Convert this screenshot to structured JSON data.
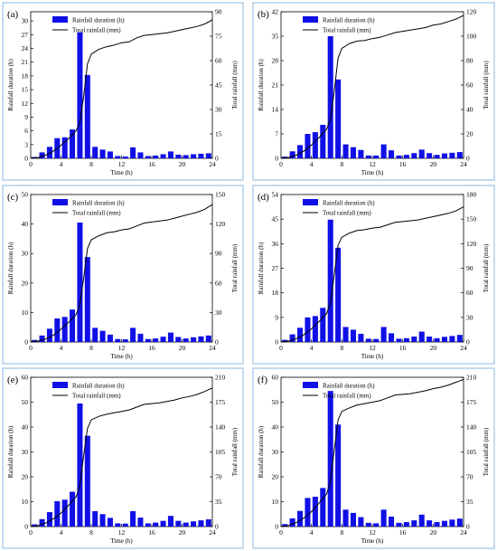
{
  "chart_data": [
    {
      "panel": "(a)",
      "type": "bar+line",
      "legend": [
        "Rainfall duration   (h)",
        "Total rainfall   (mm)"
      ],
      "xlabel": "Time   (h)",
      "ylabel_left": "Rainfall duration   (h)",
      "ylabel_right": "Total rainfall   (mm)",
      "x_ticks": [
        0,
        4,
        8,
        12,
        16,
        20,
        24
      ],
      "left_ticks": [
        0,
        3,
        6,
        9,
        12,
        15,
        18,
        21,
        24,
        27,
        30
      ],
      "right_ticks": [
        0,
        15,
        30,
        45,
        60,
        75,
        90
      ],
      "left_ylim": [
        0,
        32
      ],
      "right_ylim": [
        0,
        90
      ],
      "hours": [
        1,
        2,
        3,
        4,
        5,
        6,
        7,
        8,
        9,
        10,
        11,
        12,
        13,
        14,
        15,
        16,
        17,
        18,
        19,
        20,
        21,
        22,
        23,
        24
      ],
      "rainfall_duration": [
        0.3,
        1.3,
        2.5,
        4.4,
        4.6,
        6.3,
        27.5,
        18.2,
        2.5,
        1.9,
        1.5,
        0.5,
        0.4,
        2.4,
        1.3,
        0.5,
        0.6,
        0.9,
        1.5,
        0.8,
        0.7,
        0.9,
        1.0,
        1.1
      ],
      "total_rainfall": [
        [
          0,
          0
        ],
        [
          1,
          0.5
        ],
        [
          2,
          2
        ],
        [
          3,
          4.5
        ],
        [
          4,
          8
        ],
        [
          5,
          12
        ],
        [
          6,
          17
        ],
        [
          6.5,
          22
        ],
        [
          7,
          38
        ],
        [
          7.5,
          58
        ],
        [
          8,
          64
        ],
        [
          9,
          67
        ],
        [
          10,
          68.5
        ],
        [
          11,
          69.5
        ],
        [
          12,
          71
        ],
        [
          13,
          71.5
        ],
        [
          14,
          74
        ],
        [
          15,
          75.5
        ],
        [
          16,
          76
        ],
        [
          17,
          76.5
        ],
        [
          18,
          77
        ],
        [
          19,
          78
        ],
        [
          20,
          79
        ],
        [
          21,
          80
        ],
        [
          22,
          81
        ],
        [
          23,
          82.5
        ],
        [
          24,
          85
        ]
      ]
    },
    {
      "panel": "(b)",
      "type": "bar+line",
      "legend": [
        "Rainfall duration   (h)",
        "Total rainfall   (mm)"
      ],
      "xlabel": "Time   (h)",
      "ylabel_left": "Rainfall duration   (h)",
      "ylabel_right": "Total rainfall   (mm)",
      "x_ticks": [
        0,
        4,
        8,
        12,
        16,
        20,
        24
      ],
      "left_ticks": [
        0,
        7,
        14,
        21,
        28,
        35,
        42
      ],
      "right_ticks": [
        0,
        20,
        40,
        60,
        80,
        100,
        120
      ],
      "left_ylim": [
        0,
        42
      ],
      "right_ylim": [
        0,
        120
      ],
      "hours": [
        1,
        2,
        3,
        4,
        5,
        6,
        7,
        8,
        9,
        10,
        11,
        12,
        13,
        14,
        15,
        16,
        17,
        18,
        19,
        20,
        21,
        22,
        23,
        24
      ],
      "rainfall_duration": [
        0.5,
        2.0,
        3.8,
        7.0,
        7.5,
        9.6,
        35.0,
        22.6,
        4.0,
        3.2,
        2.4,
        0.8,
        0.8,
        4.0,
        2.3,
        0.8,
        1.0,
        1.5,
        2.5,
        1.5,
        1.0,
        1.4,
        1.6,
        1.8
      ],
      "total_rainfall": [
        [
          0,
          0
        ],
        [
          1,
          0.7
        ],
        [
          2,
          2.5
        ],
        [
          3,
          6
        ],
        [
          4,
          11
        ],
        [
          5,
          17
        ],
        [
          6,
          24
        ],
        [
          6.5,
          32
        ],
        [
          7,
          55
        ],
        [
          7.5,
          82
        ],
        [
          8,
          90
        ],
        [
          9,
          94
        ],
        [
          10,
          96
        ],
        [
          11,
          96.5
        ],
        [
          12,
          98
        ],
        [
          13,
          99
        ],
        [
          14,
          101
        ],
        [
          15,
          103
        ],
        [
          16,
          104
        ],
        [
          17,
          105
        ],
        [
          18,
          106
        ],
        [
          19,
          107
        ],
        [
          20,
          109
        ],
        [
          21,
          110
        ],
        [
          22,
          112
        ],
        [
          23,
          114
        ],
        [
          24,
          117
        ]
      ]
    },
    {
      "panel": "(c)",
      "type": "bar+line",
      "legend": [
        "Rainfall duration   (h)",
        "Total rainfall   (mm)"
      ],
      "xlabel": "Time   (h)",
      "ylabel_left": "Rainfall duration   (h)",
      "ylabel_right": "Total rainfall   (mm)",
      "x_ticks": [
        0,
        4,
        8,
        12,
        16,
        20,
        24
      ],
      "left_ticks": [
        0,
        10,
        20,
        30,
        40,
        50
      ],
      "right_ticks": [
        0,
        30,
        60,
        90,
        120,
        150
      ],
      "left_ylim": [
        0,
        50
      ],
      "right_ylim": [
        0,
        150
      ],
      "hours": [
        1,
        2,
        3,
        4,
        5,
        6,
        7,
        8,
        9,
        10,
        11,
        12,
        13,
        14,
        15,
        16,
        17,
        18,
        19,
        20,
        21,
        22,
        23,
        24
      ],
      "rainfall_duration": [
        0.7,
        2.2,
        4.5,
        8.0,
        8.5,
        11.0,
        40.5,
        28.8,
        4.8,
        3.8,
        2.5,
        1.0,
        0.9,
        4.8,
        2.8,
        1.0,
        1.2,
        1.8,
        3.2,
        1.7,
        1.2,
        1.6,
        1.9,
        2.2
      ],
      "total_rainfall": [
        [
          0,
          0
        ],
        [
          1,
          1
        ],
        [
          2,
          3
        ],
        [
          3,
          7
        ],
        [
          4,
          13
        ],
        [
          5,
          20
        ],
        [
          6,
          28
        ],
        [
          6.5,
          38
        ],
        [
          7,
          65
        ],
        [
          7.5,
          95
        ],
        [
          8,
          104
        ],
        [
          9,
          108
        ],
        [
          10,
          111
        ],
        [
          11,
          112
        ],
        [
          12,
          114
        ],
        [
          13,
          115
        ],
        [
          14,
          118
        ],
        [
          15,
          121
        ],
        [
          16,
          122
        ],
        [
          17,
          123
        ],
        [
          18,
          124
        ],
        [
          19,
          126
        ],
        [
          20,
          128
        ],
        [
          21,
          130
        ],
        [
          22,
          132
        ],
        [
          23,
          135
        ],
        [
          24,
          140
        ]
      ]
    },
    {
      "panel": "(d)",
      "type": "bar+line",
      "legend": [
        "Rainfall duration   (h)",
        "Total rainfall   (mm)"
      ],
      "xlabel": "Time   (h)",
      "ylabel_left": "Rainfall duration   (h)",
      "ylabel_right": "Total rainfall   (mm)",
      "x_ticks": [
        0,
        4,
        8,
        12,
        16,
        20,
        24
      ],
      "left_ticks": [
        0,
        9,
        18,
        27,
        36,
        45,
        54
      ],
      "right_ticks": [
        0,
        30,
        60,
        90,
        120,
        150,
        180
      ],
      "left_ylim": [
        0,
        54
      ],
      "right_ylim": [
        0,
        180
      ],
      "hours": [
        1,
        2,
        3,
        4,
        5,
        6,
        7,
        8,
        9,
        10,
        11,
        12,
        13,
        14,
        15,
        16,
        17,
        18,
        19,
        20,
        21,
        22,
        23,
        24
      ],
      "rainfall_duration": [
        0.8,
        2.8,
        5.2,
        9.0,
        9.5,
        12.5,
        44.8,
        34.5,
        5.5,
        4.5,
        3.0,
        1.2,
        1.1,
        5.5,
        3.2,
        1.2,
        1.4,
        2.0,
        3.8,
        2.0,
        1.4,
        1.9,
        2.2,
        2.6
      ],
      "total_rainfall": [
        [
          0,
          0
        ],
        [
          1,
          1.2
        ],
        [
          2,
          4
        ],
        [
          3,
          9
        ],
        [
          4,
          16
        ],
        [
          5,
          25
        ],
        [
          6,
          35
        ],
        [
          6.5,
          48
        ],
        [
          7,
          82
        ],
        [
          7.5,
          118
        ],
        [
          8,
          128
        ],
        [
          9,
          133
        ],
        [
          10,
          136
        ],
        [
          11,
          137
        ],
        [
          12,
          139
        ],
        [
          13,
          140
        ],
        [
          14,
          143
        ],
        [
          15,
          146
        ],
        [
          16,
          147
        ],
        [
          17,
          148
        ],
        [
          18,
          149
        ],
        [
          19,
          151
        ],
        [
          20,
          153
        ],
        [
          21,
          155
        ],
        [
          22,
          157
        ],
        [
          23,
          160
        ],
        [
          24,
          165
        ]
      ]
    },
    {
      "panel": "(e)",
      "type": "bar+line",
      "legend": [
        "Rainfall duration   (h)",
        "Total rainfall   (mm)"
      ],
      "xlabel": "Time   (h)",
      "ylabel_left": "Rainfall duration   (h)",
      "ylabel_right": "Total rainfall   (mm)",
      "x_ticks": [
        0,
        4,
        8,
        12,
        16,
        20,
        24
      ],
      "left_ticks": [
        0,
        10,
        20,
        30,
        40,
        50,
        60
      ],
      "right_ticks": [
        0,
        35,
        70,
        105,
        140,
        175,
        210
      ],
      "left_ylim": [
        0,
        60
      ],
      "right_ylim": [
        0,
        210
      ],
      "hours": [
        1,
        2,
        3,
        4,
        5,
        6,
        7,
        8,
        9,
        10,
        11,
        12,
        13,
        14,
        15,
        16,
        17,
        18,
        19,
        20,
        21,
        22,
        23,
        24
      ],
      "rainfall_duration": [
        0.9,
        3.0,
        5.8,
        10.2,
        10.8,
        14.0,
        49.5,
        36.5,
        6.2,
        5.0,
        3.5,
        1.3,
        1.2,
        6.2,
        3.6,
        1.3,
        1.6,
        2.3,
        4.3,
        2.3,
        1.6,
        2.1,
        2.5,
        2.9
      ],
      "total_rainfall": [
        [
          0,
          0
        ],
        [
          1,
          1.4
        ],
        [
          2,
          5
        ],
        [
          3,
          11
        ],
        [
          4,
          19
        ],
        [
          5,
          30
        ],
        [
          6,
          42
        ],
        [
          6.5,
          58
        ],
        [
          7,
          100
        ],
        [
          7.5,
          138
        ],
        [
          8,
          150
        ],
        [
          9,
          155
        ],
        [
          10,
          158
        ],
        [
          11,
          160
        ],
        [
          12,
          162
        ],
        [
          13,
          164
        ],
        [
          14,
          168
        ],
        [
          15,
          172
        ],
        [
          16,
          173
        ],
        [
          17,
          174
        ],
        [
          18,
          176
        ],
        [
          19,
          178
        ],
        [
          20,
          181
        ],
        [
          21,
          183
        ],
        [
          22,
          186
        ],
        [
          23,
          190
        ],
        [
          24,
          195
        ]
      ]
    },
    {
      "panel": "(f)",
      "type": "bar+line",
      "legend": [
        "Rainfall duration   (h)",
        "Total rainfall   (mm)"
      ],
      "xlabel": "Time   (h)",
      "ylabel_left": "Rainfall duration   (h)",
      "ylabel_right": "Total rainfall   (mm)",
      "x_ticks": [
        0,
        4,
        8,
        12,
        16,
        20,
        24
      ],
      "left_ticks": [
        0,
        10,
        20,
        30,
        40,
        50,
        60
      ],
      "right_ticks": [
        0,
        35,
        70,
        105,
        140,
        175,
        210
      ],
      "left_ylim": [
        0,
        60
      ],
      "right_ylim": [
        0,
        210
      ],
      "hours": [
        1,
        2,
        3,
        4,
        5,
        6,
        7,
        8,
        9,
        10,
        11,
        12,
        13,
        14,
        15,
        16,
        17,
        18,
        19,
        20,
        21,
        22,
        23,
        24
      ],
      "rainfall_duration": [
        1.0,
        3.3,
        6.3,
        11.5,
        12.0,
        15.5,
        54.5,
        41.0,
        6.8,
        5.5,
        3.8,
        1.5,
        1.3,
        6.8,
        4.0,
        1.5,
        1.8,
        2.5,
        4.8,
        2.5,
        1.8,
        2.3,
        2.8,
        3.2
      ],
      "total_rainfall": [
        [
          0,
          0
        ],
        [
          1,
          1.6
        ],
        [
          2,
          5.5
        ],
        [
          3,
          12
        ],
        [
          4,
          21
        ],
        [
          5,
          33
        ],
        [
          6,
          46
        ],
        [
          6.5,
          64
        ],
        [
          7,
          108
        ],
        [
          7.5,
          150
        ],
        [
          8,
          162
        ],
        [
          9,
          167
        ],
        [
          10,
          171
        ],
        [
          11,
          173
        ],
        [
          12,
          175
        ],
        [
          13,
          177
        ],
        [
          14,
          181
        ],
        [
          15,
          185
        ],
        [
          16,
          186
        ],
        [
          17,
          187
        ],
        [
          18,
          189
        ],
        [
          19,
          191
        ],
        [
          20,
          194
        ],
        [
          21,
          196
        ],
        [
          22,
          199
        ],
        [
          23,
          203
        ],
        [
          24,
          207
        ]
      ]
    }
  ]
}
